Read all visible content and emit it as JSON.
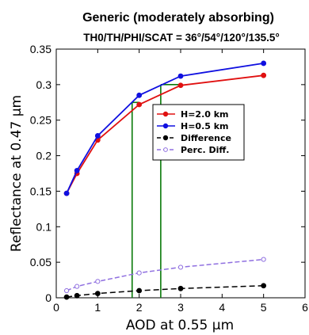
{
  "chart_data": {
    "type": "line",
    "title": "Generic (moderately absorbing)",
    "subtitle": "TH0/TH/PHI/SCAT = 36°/54°/120°/135.5°",
    "xlabel": "AOD at 0.55 µm",
    "ylabel": "Reflectance at 0.47 µm",
    "xlim": [
      0,
      6
    ],
    "ylim": [
      0,
      0.35
    ],
    "xticks": [
      "0",
      "1",
      "2",
      "3",
      "4",
      "5",
      "6"
    ],
    "yticks": [
      "0",
      "0.05",
      "0.1",
      "0.15",
      "0.2",
      "0.25",
      "0.3",
      "0.35"
    ],
    "grid": false,
    "legend_position": "center-right",
    "series": [
      {
        "name": "H=2.0 km",
        "color": "#e01010",
        "style": "solid",
        "marker": "filled-circle",
        "x": [
          0.25,
          0.5,
          1.0,
          2.0,
          3.0,
          5.0
        ],
        "y": [
          0.147,
          0.175,
          0.222,
          0.272,
          0.299,
          0.313
        ]
      },
      {
        "name": "H=0.5 km",
        "color": "#1010e0",
        "style": "solid",
        "marker": "filled-circle",
        "x": [
          0.25,
          0.5,
          1.0,
          2.0,
          3.0,
          5.0
        ],
        "y": [
          0.147,
          0.179,
          0.228,
          0.285,
          0.312,
          0.33
        ]
      },
      {
        "name": "Difference",
        "color": "#000000",
        "style": "dashed",
        "marker": "filled-circle",
        "x": [
          0.25,
          0.5,
          1.0,
          2.0,
          3.0,
          5.0
        ],
        "y": [
          0.001,
          0.003,
          0.006,
          0.01,
          0.013,
          0.017
        ]
      },
      {
        "name": "Perc. Diff.",
        "color": "#8f6fe0",
        "style": "dashed",
        "marker": "open-circle",
        "x": [
          0.25,
          0.5,
          1.0,
          2.0,
          3.0,
          5.0
        ],
        "y": [
          0.01,
          0.016,
          0.023,
          0.035,
          0.043,
          0.054
        ]
      }
    ],
    "annotations": {
      "color": "#0a7a0a",
      "vlines": [
        1.83,
        2.52
      ],
      "hlines": [
        {
          "y": 0.275,
          "x_from": 1.83,
          "x_to": 2.0
        },
        {
          "y": 0.3,
          "x_from": 2.52,
          "x_to": 3.0
        }
      ]
    }
  }
}
